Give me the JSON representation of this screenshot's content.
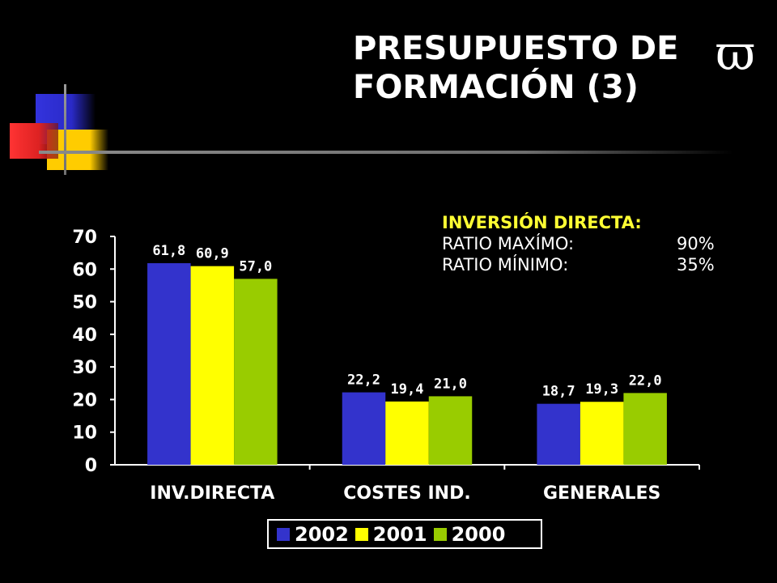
{
  "header": {
    "title_line1": "PRESUPUESTO DE",
    "title_line2": "FORMACIÓN (3)",
    "symbol": "ϖ"
  },
  "info_box": {
    "heading": "INVERSIÓN DIRECTA:",
    "rows": [
      {
        "label": "RATIO MAXÍMO:",
        "value": "90%"
      },
      {
        "label": "RATIO MÍNIMO:",
        "value": "35%"
      }
    ]
  },
  "colors": {
    "series_2002": "#3333cc",
    "series_2001": "#ffff00",
    "series_2000": "#99cc00",
    "heading_yellow": "#ffff33"
  },
  "chart_data": {
    "type": "bar",
    "categories": [
      "INV.DIRECTA",
      "COSTES IND.",
      "GENERALES"
    ],
    "series": [
      {
        "name": "2002",
        "values": [
          61.8,
          22.2,
          18.7
        ],
        "labels": [
          "61,8",
          "22,2",
          "18,7"
        ],
        "color": "#3333cc"
      },
      {
        "name": "2001",
        "values": [
          60.9,
          19.4,
          19.3
        ],
        "labels": [
          "60,9",
          "19,4",
          "19,3"
        ],
        "color": "#ffff00"
      },
      {
        "name": "2000",
        "values": [
          57.0,
          21.0,
          22.0
        ],
        "labels": [
          "57,0",
          "21,0",
          "22,0"
        ],
        "color": "#99cc00"
      }
    ],
    "ylim": [
      0,
      70
    ],
    "yticks": [
      "0",
      "10",
      "20",
      "30",
      "40",
      "50",
      "60",
      "70"
    ],
    "legend_position": "bottom",
    "grid": false
  }
}
